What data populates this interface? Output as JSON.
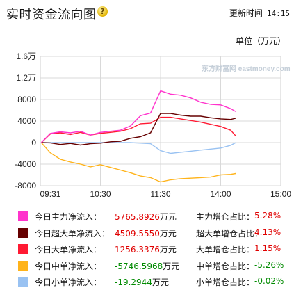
{
  "header": {
    "title": "实时资金流向图",
    "update_label": "更新时间",
    "update_time": "14:15"
  },
  "unit_label": "单位（万元）",
  "watermark": "东方财富网 eastmoney.com",
  "chart_data": {
    "type": "line",
    "title": "",
    "xlabel": "",
    "ylabel": "",
    "y_tick_labels": [
      "1.6万",
      "1.2万",
      "8000",
      "4000",
      "0",
      "-4000",
      "-8000"
    ],
    "y_tick_values": [
      16000,
      12000,
      8000,
      4000,
      0,
      -4000,
      -8000
    ],
    "ylim": [
      -8000,
      16000
    ],
    "x_tick_labels": [
      "09:31",
      "10:30",
      "11:30",
      "14:00",
      "15:00"
    ],
    "x": [
      "09:31",
      "09:40",
      "09:50",
      "10:00",
      "10:10",
      "10:20",
      "10:30",
      "10:40",
      "10:50",
      "11:00",
      "11:10",
      "11:20",
      "11:30",
      "13:10",
      "13:20",
      "13:30",
      "13:40",
      "13:50",
      "14:00",
      "14:10",
      "14:15"
    ],
    "grid": true,
    "series": [
      {
        "name": "今日主力净流入",
        "color": "#ff33cc",
        "values": [
          0,
          1700,
          2000,
          1800,
          2100,
          1400,
          1900,
          2100,
          2300,
          3100,
          5000,
          5500,
          9600,
          9000,
          8800,
          8300,
          7500,
          7100,
          7000,
          6300,
          5766
        ]
      },
      {
        "name": "今日超大单净流入",
        "color": "#660000",
        "values": [
          0,
          -50,
          -350,
          -150,
          -450,
          -200,
          -100,
          150,
          250,
          800,
          1100,
          1800,
          5400,
          5400,
          5100,
          4900,
          4900,
          4600,
          4400,
          4300,
          4510
        ]
      },
      {
        "name": "今日大单净流入",
        "color": "#ff1a33",
        "values": [
          0,
          1600,
          1800,
          1500,
          1900,
          1400,
          1700,
          1900,
          2100,
          2600,
          3500,
          3600,
          4700,
          4700,
          4400,
          4100,
          3800,
          3400,
          3000,
          2300,
          1256
        ]
      },
      {
        "name": "今日中单净流入",
        "color": "#ffb31a",
        "values": [
          0,
          -1900,
          -3100,
          -3600,
          -4000,
          -4500,
          -4100,
          -4600,
          -5100,
          -5600,
          -6200,
          -6500,
          -7300,
          -6900,
          -6700,
          -6600,
          -6500,
          -6400,
          -6000,
          -5900,
          -5747
        ]
      },
      {
        "name": "今日小单净流入",
        "color": "#99c2f2",
        "values": [
          0,
          0,
          0,
          0,
          0,
          0,
          0,
          0,
          0,
          0,
          -100,
          -200,
          -1500,
          -2000,
          -1800,
          -1600,
          -1400,
          -1200,
          -1000,
          -500,
          -19
        ]
      }
    ]
  },
  "stats": [
    {
      "label": "今日主力净流入：",
      "value": "5765.8926",
      "unit": "万元",
      "ratio_label": "主力增仓占比：",
      "ratio": "5.28%",
      "color": "#ff33cc",
      "neg": false
    },
    {
      "label": "今日超大单净流入：",
      "value": "4509.5550",
      "unit": "万元",
      "ratio_label": "超大单增仓占比：",
      "ratio": "4.13%",
      "color": "#660000",
      "neg": false
    },
    {
      "label": "今日大单净流入：",
      "value": "1256.3376",
      "unit": "万元",
      "ratio_label": "大单增仓占比：",
      "ratio": "1.15%",
      "color": "#ff1a33",
      "neg": false
    },
    {
      "label": "今日中单净流入：",
      "value": "-5746.5968",
      "unit": "万元",
      "ratio_label": "中单增仓占比：",
      "ratio": "-5.26%",
      "color": "#ffb31a",
      "neg": true
    },
    {
      "label": "今日小单净流入：",
      "value": "-19.2944",
      "unit": "万元",
      "ratio_label": "小单增仓占比：",
      "ratio": "-0.02%",
      "color": "#99c2f2",
      "neg": true
    }
  ]
}
